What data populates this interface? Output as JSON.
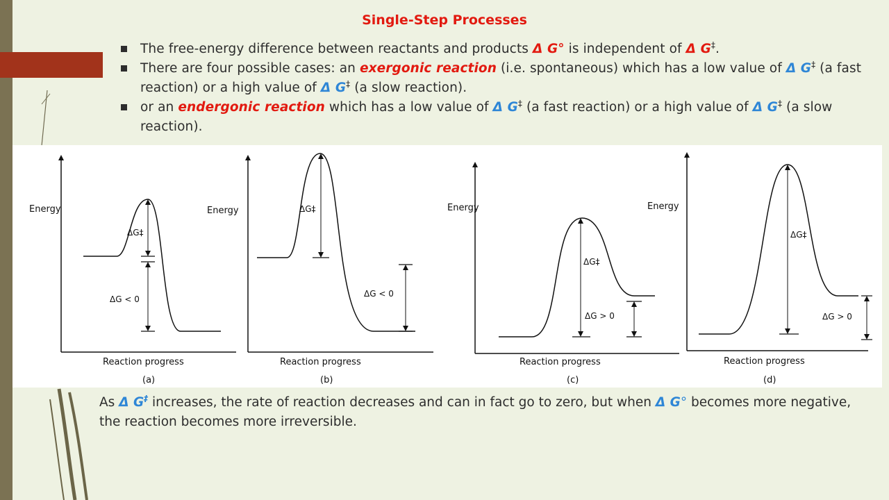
{
  "slide": {
    "title": "Single-Step Processes",
    "bullet1": {
      "t1": "The free-energy difference between reactants and products ",
      "dg0": "Δ G°",
      "t2": " is independent of ",
      "dg1": "Δ G",
      "dagger": "‡",
      "t3": "."
    },
    "bullet2": {
      "t1": "There are four possible cases: an ",
      "exergonic": "exergonic reaction",
      "t2": " (i.e. spontaneous) which has a low value of ",
      "dg1": "Δ G",
      "dagger1": "‡",
      "t3": " (a fast reaction) or a high value of ",
      "dg2": "Δ G",
      "dagger2": "‡",
      "t4": " (a slow reaction)."
    },
    "bullet3": {
      "t1": "or an ",
      "endergonic": "endergonic reaction",
      "t2": " which has a low value of ",
      "dg1": "Δ G",
      "dagger1": "‡",
      "t3": " (a fast reaction) or a high value of ",
      "dg2": "Δ G",
      "dagger2": "‡",
      "t4": " (a slow reaction)."
    },
    "footer": {
      "t1": "As ",
      "dg1": "Δ G",
      "dagger": "‡",
      "t2": " increases, the rate of reaction decreases and can in fact go to zero, but when ",
      "dg2": "Δ G",
      "degree": "°",
      "t3": " becomes more negative, the reaction becomes more irreversible."
    }
  },
  "figure": {
    "ylabel": "Energy",
    "xlabel": "Reaction progress",
    "panels": [
      {
        "label": "(a)",
        "barrier": "ΔG‡",
        "dg": "ΔG < 0"
      },
      {
        "label": "(b)",
        "barrier": "ΔG‡",
        "dg": "ΔG < 0"
      },
      {
        "label": "(c)",
        "barrier": "ΔG‡",
        "dg": "ΔG > 0"
      },
      {
        "label": "(d)",
        "barrier": "ΔG‡",
        "dg": "ΔG > 0"
      }
    ]
  },
  "colors": {
    "title": "#e21a10",
    "highlight": "#e21a10",
    "delta": "#2e86d6",
    "accent_bar": "#a2331b",
    "strip": "#7b7253",
    "background": "#eef2e2"
  }
}
